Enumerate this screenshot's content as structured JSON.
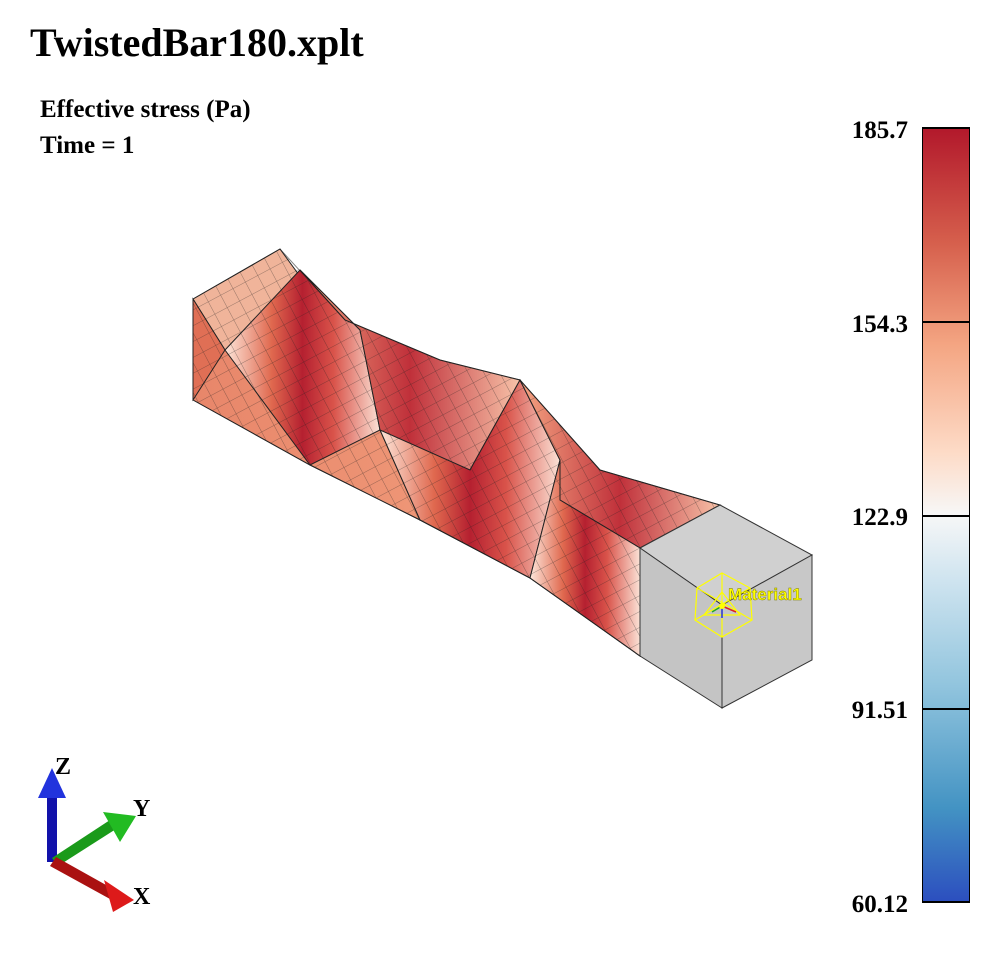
{
  "file_title": "TwistedBar180.xplt",
  "field_label": "Effective stress (Pa)",
  "time_label": "Time = 1",
  "colorbar": {
    "ticks": [
      "185.7",
      "154.3",
      "122.9",
      "91.51",
      "60.12"
    ],
    "max_color": "#b2182b",
    "mid_color": "#f7f7f7",
    "min_color": "#2c4fbf"
  },
  "model": {
    "material_label": "Material1",
    "solid_color": "#c8c8c8",
    "highlight_color": "#ffff00"
  },
  "triad": {
    "x_label": "X",
    "y_label": "Y",
    "z_label": "Z",
    "x_color": "#cc1111",
    "y_color": "#119911",
    "z_color": "#1111cc"
  }
}
